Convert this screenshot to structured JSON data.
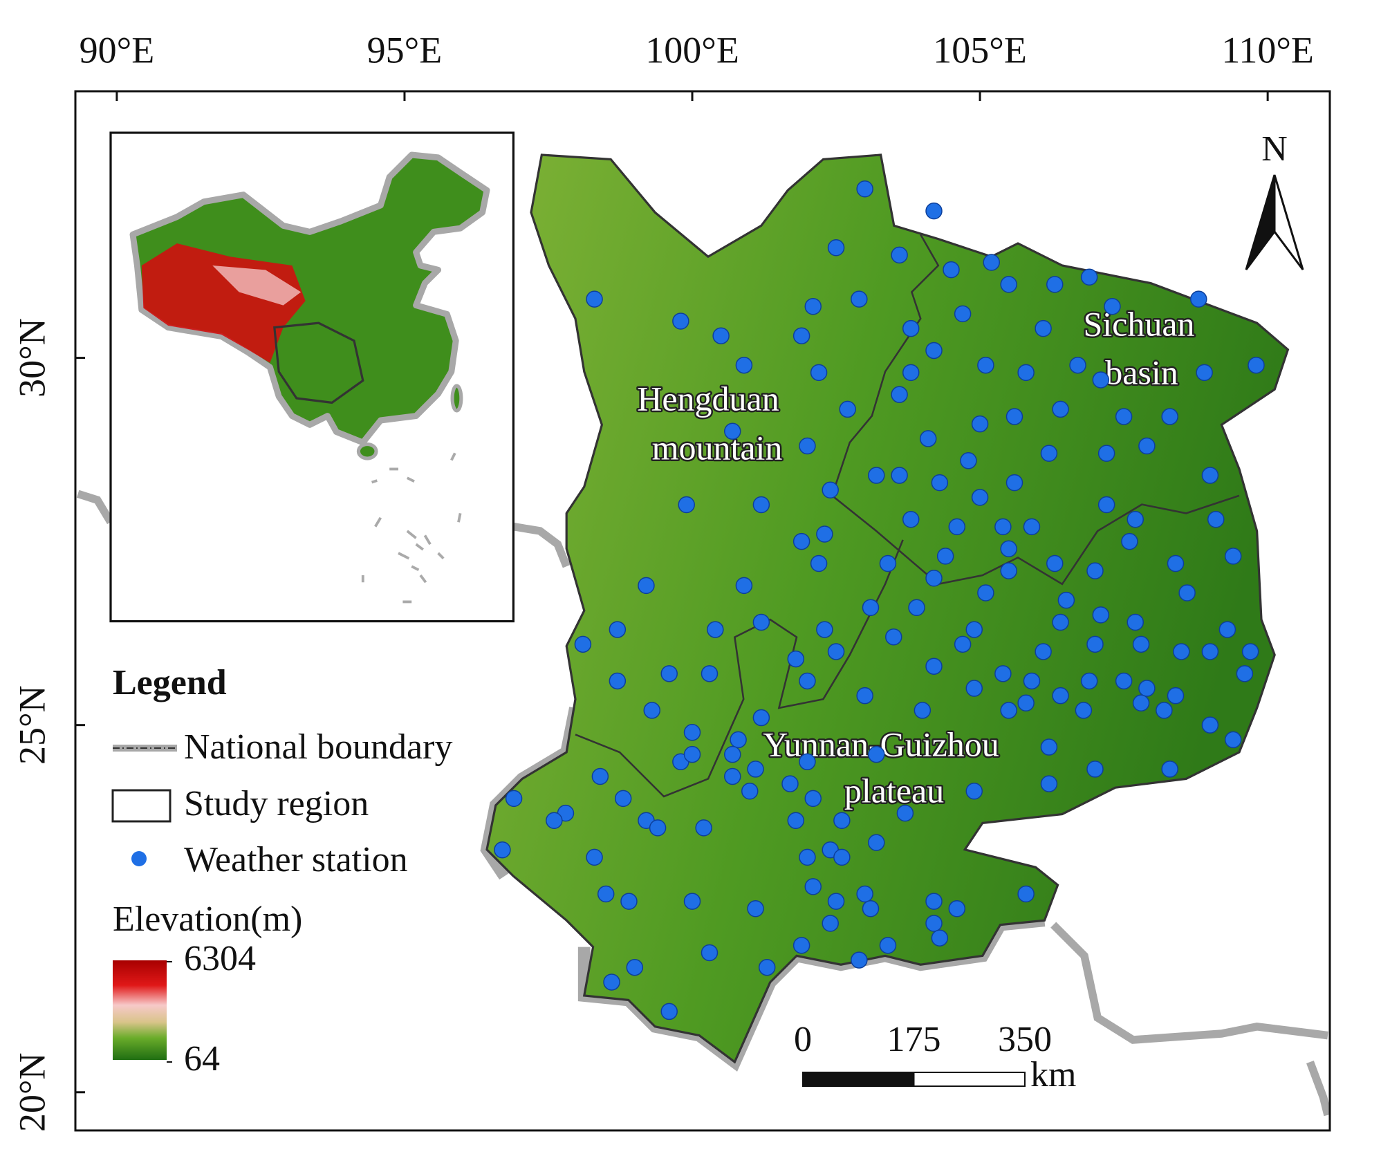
{
  "map": {
    "xlim": [
      89.28,
      111.08
    ],
    "ylim": [
      19.48,
      33.63
    ],
    "xticks": [
      {
        "value": 90,
        "label": "90°E"
      },
      {
        "value": 95,
        "label": "95°E"
      },
      {
        "value": 100,
        "label": "100°E"
      },
      {
        "value": 105,
        "label": "105°E"
      },
      {
        "value": 110,
        "label": "110°E"
      }
    ],
    "yticks": [
      {
        "value": 30,
        "label": "30°N"
      },
      {
        "value": 25,
        "label": "25°N"
      },
      {
        "value": 20,
        "label": "20°N"
      }
    ],
    "regions": [
      {
        "lines": [
          "Hengduan",
          "mountain"
        ]
      },
      {
        "lines": [
          "Sichuan",
          "basin"
        ]
      },
      {
        "lines": [
          "Yunnan-Guizhou",
          "plateau"
        ]
      }
    ],
    "north": "N",
    "legend": {
      "title": "Legend",
      "items": [
        "National boundary",
        "Study region",
        "Weather station"
      ],
      "elevation_title": "Elevation(m)",
      "elevation_max": 6304,
      "elevation_min": 64
    },
    "scale_bar": {
      "ticks": [
        0,
        175,
        350
      ],
      "unit": "km"
    },
    "stations": {
      "color": "#1f6fe5",
      "points": [
        [
          103.0,
          32.3
        ],
        [
          104.2,
          32.0
        ],
        [
          102.5,
          31.5
        ],
        [
          103.6,
          31.4
        ],
        [
          104.5,
          31.2
        ],
        [
          105.2,
          31.3
        ],
        [
          105.5,
          31.0
        ],
        [
          106.3,
          31.0
        ],
        [
          106.9,
          31.1
        ],
        [
          107.3,
          30.7
        ],
        [
          108.8,
          30.8
        ],
        [
          98.3,
          30.8
        ],
        [
          99.8,
          30.5
        ],
        [
          100.5,
          30.3
        ],
        [
          102.1,
          30.7
        ],
        [
          102.9,
          30.8
        ],
        [
          101.9,
          30.3
        ],
        [
          103.8,
          30.4
        ],
        [
          104.7,
          30.6
        ],
        [
          106.1,
          30.4
        ],
        [
          100.9,
          29.9
        ],
        [
          102.2,
          29.8
        ],
        [
          104.2,
          30.1
        ],
        [
          105.1,
          29.9
        ],
        [
          105.8,
          29.8
        ],
        [
          106.7,
          29.9
        ],
        [
          107.1,
          29.7
        ],
        [
          108.9,
          29.8
        ],
        [
          109.8,
          29.9
        ],
        [
          103.8,
          29.8
        ],
        [
          103.6,
          29.5
        ],
        [
          102.7,
          29.3
        ],
        [
          100.7,
          29.0
        ],
        [
          102.0,
          28.8
        ],
        [
          104.1,
          28.9
        ],
        [
          105.0,
          29.1
        ],
        [
          105.6,
          29.2
        ],
        [
          106.4,
          29.3
        ],
        [
          107.5,
          29.2
        ],
        [
          108.3,
          29.2
        ],
        [
          107.9,
          28.8
        ],
        [
          107.2,
          28.7
        ],
        [
          106.2,
          28.7
        ],
        [
          104.8,
          28.6
        ],
        [
          104.3,
          28.3
        ],
        [
          103.6,
          28.4
        ],
        [
          105.6,
          28.3
        ],
        [
          105.0,
          28.1
        ],
        [
          103.2,
          28.4
        ],
        [
          102.4,
          28.2
        ],
        [
          99.9,
          28.0
        ],
        [
          101.2,
          28.0
        ],
        [
          103.8,
          27.8
        ],
        [
          104.6,
          27.7
        ],
        [
          105.4,
          27.7
        ],
        [
          105.9,
          27.7
        ],
        [
          107.2,
          28.0
        ],
        [
          107.7,
          27.8
        ],
        [
          109.0,
          28.4
        ],
        [
          109.1,
          27.8
        ],
        [
          101.9,
          27.5
        ],
        [
          102.3,
          27.6
        ],
        [
          102.2,
          27.2
        ],
        [
          103.4,
          27.2
        ],
        [
          104.4,
          27.3
        ],
        [
          105.5,
          27.4
        ],
        [
          106.3,
          27.2
        ],
        [
          107.6,
          27.5
        ],
        [
          108.4,
          27.2
        ],
        [
          109.4,
          27.3
        ],
        [
          104.2,
          27.0
        ],
        [
          105.5,
          27.1
        ],
        [
          106.5,
          26.7
        ],
        [
          107.0,
          27.1
        ],
        [
          108.6,
          26.8
        ],
        [
          99.2,
          26.9
        ],
        [
          100.9,
          26.9
        ],
        [
          103.1,
          26.6
        ],
        [
          103.9,
          26.6
        ],
        [
          105.1,
          26.8
        ],
        [
          107.1,
          26.5
        ],
        [
          106.4,
          26.4
        ],
        [
          107.7,
          26.4
        ],
        [
          109.3,
          26.3
        ],
        [
          98.7,
          26.3
        ],
        [
          100.4,
          26.3
        ],
        [
          101.2,
          26.4
        ],
        [
          102.3,
          26.3
        ],
        [
          103.5,
          26.2
        ],
        [
          104.9,
          26.3
        ],
        [
          104.7,
          26.1
        ],
        [
          106.1,
          26.0
        ],
        [
          107.0,
          26.1
        ],
        [
          107.8,
          26.1
        ],
        [
          108.5,
          26.0
        ],
        [
          109.0,
          26.0
        ],
        [
          109.7,
          26.0
        ],
        [
          109.6,
          25.7
        ],
        [
          98.1,
          26.1
        ],
        [
          102.5,
          26.0
        ],
        [
          101.8,
          25.9
        ],
        [
          102.0,
          25.6
        ],
        [
          100.3,
          25.7
        ],
        [
          99.6,
          25.7
        ],
        [
          98.7,
          25.6
        ],
        [
          104.2,
          25.8
        ],
        [
          105.4,
          25.7
        ],
        [
          105.9,
          25.6
        ],
        [
          104.9,
          25.5
        ],
        [
          106.9,
          25.6
        ],
        [
          107.5,
          25.6
        ],
        [
          107.9,
          25.5
        ],
        [
          108.4,
          25.4
        ],
        [
          106.4,
          25.4
        ],
        [
          105.8,
          25.3
        ],
        [
          105.5,
          25.2
        ],
        [
          106.8,
          25.2
        ],
        [
          107.8,
          25.3
        ],
        [
          108.2,
          25.2
        ],
        [
          99.3,
          25.2
        ],
        [
          101.2,
          25.1
        ],
        [
          104.0,
          25.2
        ],
        [
          103.0,
          25.4
        ],
        [
          109.0,
          25.0
        ],
        [
          109.4,
          24.8
        ],
        [
          100.0,
          24.9
        ],
        [
          100.8,
          24.8
        ],
        [
          106.2,
          24.7
        ],
        [
          100.7,
          24.6
        ],
        [
          99.8,
          24.5
        ],
        [
          100.0,
          24.6
        ],
        [
          102.0,
          24.5
        ],
        [
          103.2,
          24.6
        ],
        [
          101.1,
          24.4
        ],
        [
          100.7,
          24.3
        ],
        [
          101.0,
          24.1
        ],
        [
          101.7,
          24.2
        ],
        [
          98.4,
          24.3
        ],
        [
          98.8,
          24.0
        ],
        [
          107.0,
          24.4
        ],
        [
          108.3,
          24.4
        ],
        [
          106.2,
          24.2
        ],
        [
          104.9,
          24.1
        ],
        [
          96.9,
          24.0
        ],
        [
          97.8,
          23.8
        ],
        [
          97.6,
          23.7
        ],
        [
          99.2,
          23.7
        ],
        [
          99.4,
          23.6
        ],
        [
          101.8,
          23.7
        ],
        [
          102.1,
          24.0
        ],
        [
          102.6,
          23.7
        ],
        [
          103.7,
          23.8
        ],
        [
          100.2,
          23.6
        ],
        [
          103.2,
          23.4
        ],
        [
          96.7,
          23.3
        ],
        [
          98.3,
          23.2
        ],
        [
          102.0,
          23.2
        ],
        [
          102.4,
          23.3
        ],
        [
          102.6,
          23.2
        ],
        [
          98.5,
          22.7
        ],
        [
          98.9,
          22.6
        ],
        [
          100.0,
          22.6
        ],
        [
          102.1,
          22.8
        ],
        [
          102.5,
          22.6
        ],
        [
          103.0,
          22.7
        ],
        [
          103.1,
          22.5
        ],
        [
          101.1,
          22.5
        ],
        [
          104.2,
          22.6
        ],
        [
          104.6,
          22.5
        ],
        [
          105.8,
          22.7
        ],
        [
          102.4,
          22.3
        ],
        [
          104.2,
          22.3
        ],
        [
          104.3,
          22.1
        ],
        [
          101.9,
          22.0
        ],
        [
          103.4,
          22.0
        ],
        [
          100.3,
          21.9
        ],
        [
          102.9,
          21.8
        ],
        [
          99.0,
          21.7
        ],
        [
          98.6,
          21.5
        ],
        [
          101.3,
          21.7
        ],
        [
          99.6,
          21.1
        ]
      ]
    }
  }
}
